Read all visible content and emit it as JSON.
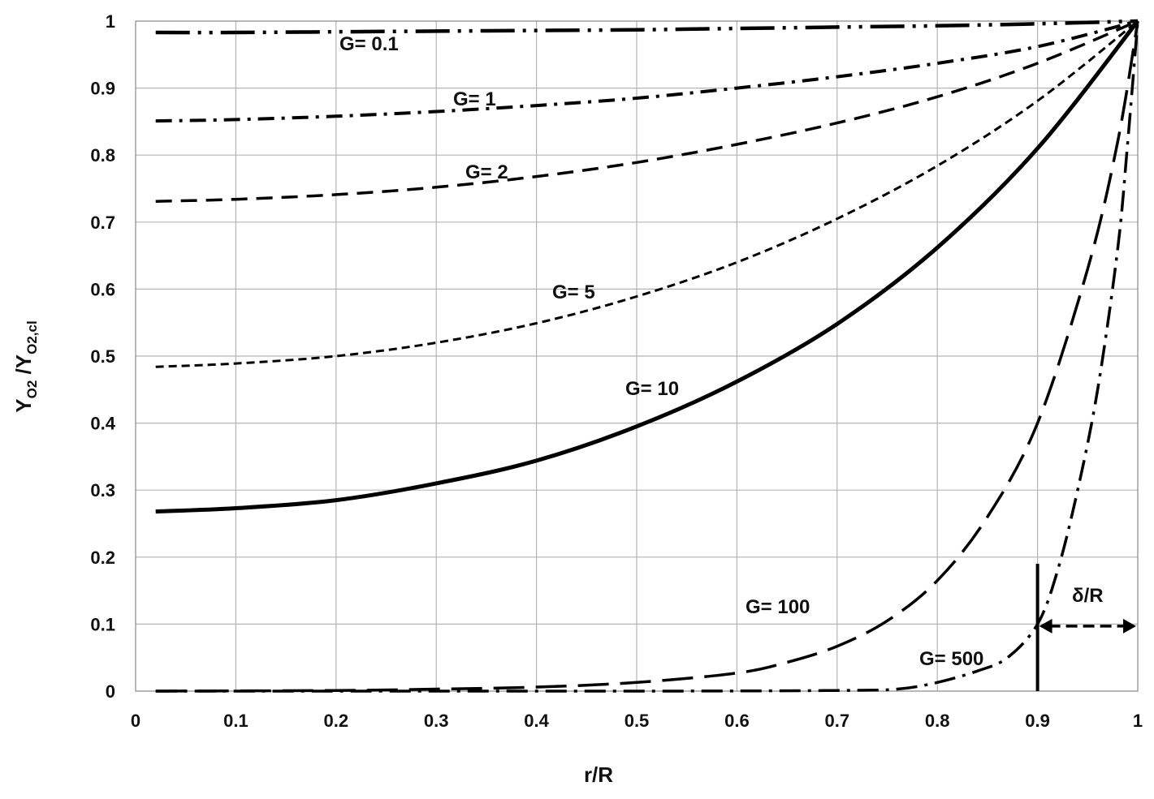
{
  "chart_data": {
    "type": "line",
    "xlabel": "r/R",
    "ylabel": {
      "main": "Y",
      "sub1": "O2",
      "sep": " /Y",
      "sub2": "O2,cl"
    },
    "xlim": [
      0,
      1
    ],
    "ylim": [
      0,
      1
    ],
    "x_ticks": [
      "0",
      "0.1",
      "0.2",
      "0.3",
      "0.4",
      "0.5",
      "0.6",
      "0.7",
      "0.8",
      "0.9",
      "1"
    ],
    "y_ticks": [
      "0",
      "0.1",
      "0.2",
      "0.3",
      "0.4",
      "0.5",
      "0.6",
      "0.7",
      "0.8",
      "0.9",
      "1"
    ],
    "grid": true,
    "series": [
      {
        "name": "G= 0.1",
        "style": "dash-dot-dot",
        "x": [
          0.02,
          0.1,
          0.2,
          0.3,
          0.4,
          0.5,
          0.6,
          0.7,
          0.8,
          0.9,
          1.0
        ],
        "y": [
          0.983,
          0.983,
          0.984,
          0.985,
          0.986,
          0.987,
          0.989,
          0.991,
          0.993,
          0.996,
          1.0
        ]
      },
      {
        "name": "G= 1",
        "style": "dash-dot",
        "x": [
          0.02,
          0.1,
          0.2,
          0.3,
          0.4,
          0.5,
          0.6,
          0.7,
          0.8,
          0.9,
          1.0
        ],
        "y": [
          0.851,
          0.853,
          0.858,
          0.865,
          0.874,
          0.885,
          0.9,
          0.917,
          0.937,
          0.962,
          1.0
        ]
      },
      {
        "name": "G= 2",
        "style": "dash",
        "x": [
          0.02,
          0.1,
          0.2,
          0.3,
          0.4,
          0.5,
          0.6,
          0.7,
          0.8,
          0.9,
          1.0
        ],
        "y": [
          0.731,
          0.734,
          0.741,
          0.752,
          0.768,
          0.789,
          0.816,
          0.848,
          0.887,
          0.937,
          1.0
        ]
      },
      {
        "name": "G= 5",
        "style": "short-dash",
        "x": [
          0.02,
          0.1,
          0.2,
          0.3,
          0.4,
          0.5,
          0.6,
          0.7,
          0.8,
          0.9,
          1.0
        ],
        "y": [
          0.484,
          0.489,
          0.5,
          0.52,
          0.549,
          0.589,
          0.64,
          0.705,
          0.784,
          0.881,
          1.0
        ]
      },
      {
        "name": "G= 10",
        "style": "solid",
        "x": [
          0.02,
          0.1,
          0.2,
          0.3,
          0.4,
          0.5,
          0.6,
          0.7,
          0.8,
          0.9,
          1.0
        ],
        "y": [
          0.268,
          0.273,
          0.285,
          0.31,
          0.344,
          0.395,
          0.462,
          0.548,
          0.662,
          0.81,
          1.0
        ]
      },
      {
        "name": "G= 100",
        "style": "long-dash",
        "x": [
          0.02,
          0.2,
          0.3,
          0.4,
          0.5,
          0.6,
          0.65,
          0.7,
          0.75,
          0.8,
          0.85,
          0.9,
          0.95,
          0.98,
          1.0
        ],
        "y": [
          0.0,
          0.001,
          0.003,
          0.006,
          0.013,
          0.027,
          0.043,
          0.067,
          0.105,
          0.165,
          0.26,
          0.4,
          0.63,
          0.82,
          1.0
        ]
      },
      {
        "name": "G= 500",
        "style": "dash-dot-long",
        "x": [
          0.02,
          0.5,
          0.7,
          0.76,
          0.8,
          0.84,
          0.87,
          0.9,
          0.92,
          0.94,
          0.96,
          0.98,
          0.99,
          1.0
        ],
        "y": [
          0.0,
          0.0,
          0.001,
          0.003,
          0.013,
          0.03,
          0.05,
          0.1,
          0.18,
          0.3,
          0.45,
          0.66,
          0.82,
          1.0
        ]
      }
    ],
    "annotations": {
      "delta": {
        "label": "δ/R",
        "x_start": 0.9,
        "x_end": 1.0,
        "y": 0.097
      }
    }
  }
}
